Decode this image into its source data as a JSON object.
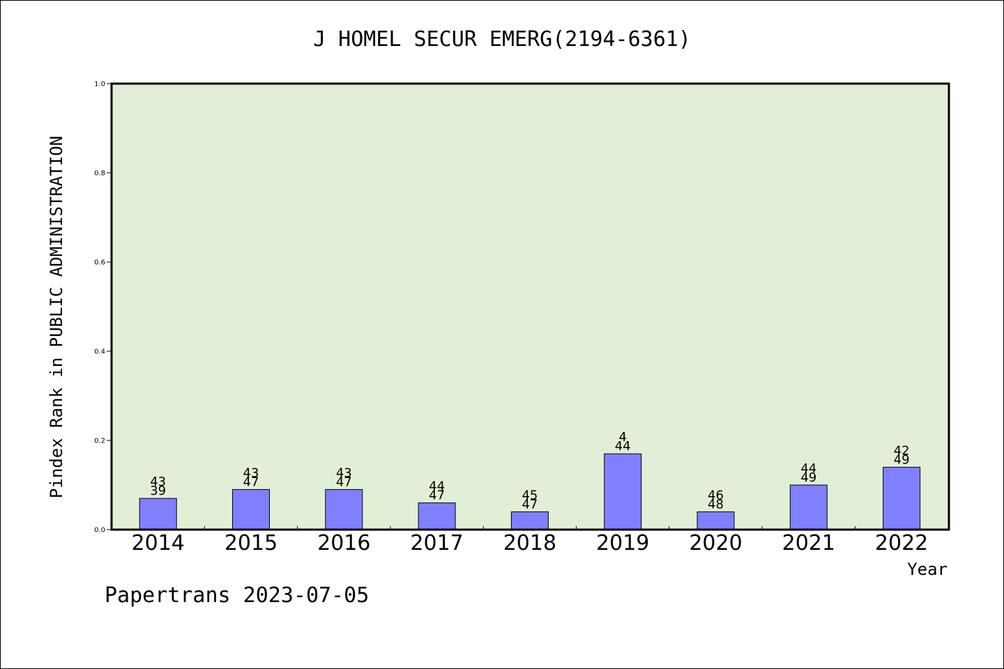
{
  "chart_data": {
    "type": "bar",
    "title": "J HOMEL SECUR EMERG(2194-6361)",
    "xlabel": "Year",
    "ylabel": "Pindex Rank in PUBLIC ADMINISTRATION",
    "categories": [
      "2014",
      "2015",
      "2016",
      "2017",
      "2018",
      "2019",
      "2020",
      "2021",
      "2022"
    ],
    "values": [
      0.07,
      0.09,
      0.09,
      0.06,
      0.04,
      0.17,
      0.04,
      0.1,
      0.14
    ],
    "rank_labels": [
      "43",
      "43",
      "43",
      "44",
      "45",
      "4",
      "46",
      "44",
      "42"
    ],
    "total_labels": [
      "39",
      "47",
      "47",
      "47",
      "47",
      "44",
      "48",
      "49",
      "49"
    ],
    "ylim": [
      0,
      1.0
    ],
    "yticks": [
      "0.0",
      "0.2",
      "0.4",
      "0.6",
      "0.8",
      "1.0"
    ],
    "ytick_values": [
      0.0,
      0.2,
      0.4,
      0.6,
      0.8,
      1.0
    ],
    "grid": false,
    "colors": {
      "plot_background": "#e2efd6",
      "bar": "#8080ff",
      "axis": "#000000"
    }
  },
  "footer": "Papertrans 2023-07-05"
}
